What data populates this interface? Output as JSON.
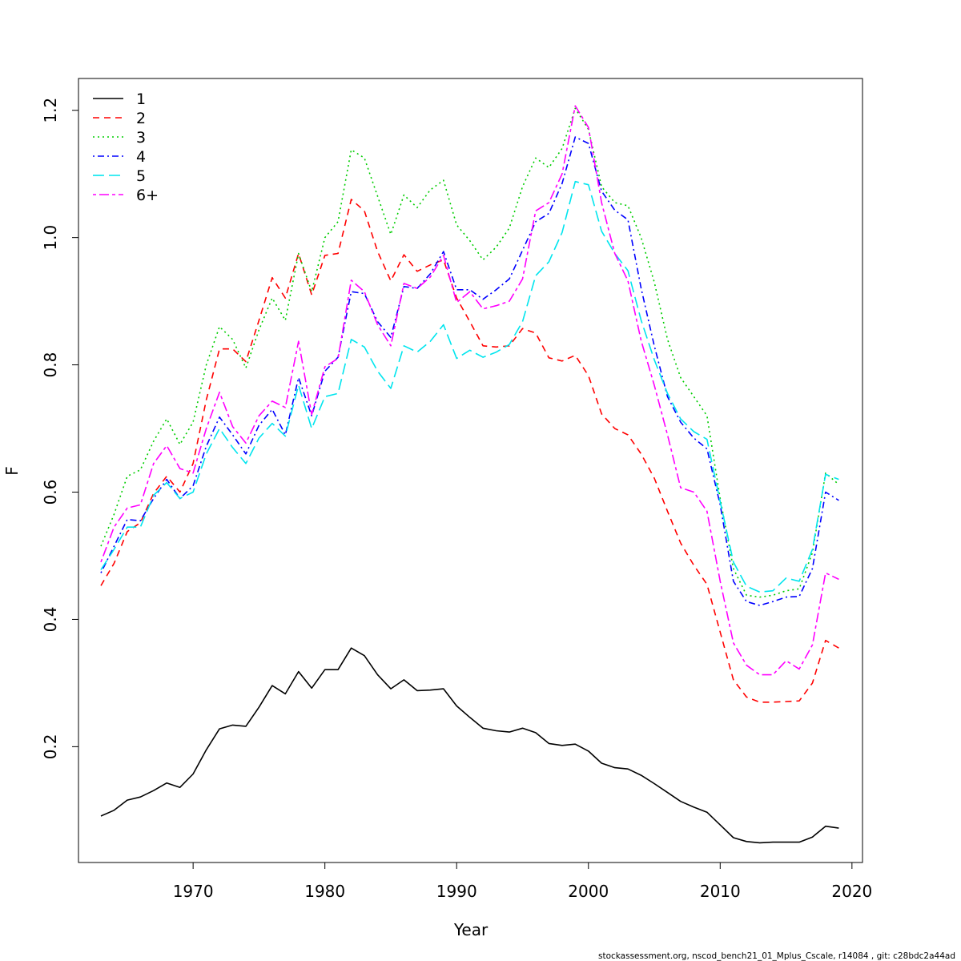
{
  "chart_data": {
    "type": "line",
    "xlabel": "Year",
    "ylabel": "F",
    "xlim": [
      1961.3,
      2020.8
    ],
    "ylim": [
      0.018,
      1.25
    ],
    "xticks": [
      1970,
      1980,
      1990,
      2000,
      2010,
      2020
    ],
    "yticks": [
      0.2,
      0.4,
      0.6,
      0.8,
      1.0,
      1.2
    ],
    "ytick_labels": [
      "0.2",
      "0.4",
      "0.6",
      "0.8",
      "1.0",
      "1.2"
    ],
    "grid": false,
    "legend_position": "top-left",
    "footer": "stockassessment.org, nscod_bench21_01_Mplus_Cscale, r14084 , git: c28bdc2a44ad",
    "x": [
      1963,
      1964,
      1965,
      1966,
      1967,
      1968,
      1969,
      1970,
      1971,
      1972,
      1973,
      1974,
      1975,
      1976,
      1977,
      1978,
      1979,
      1980,
      1981,
      1982,
      1983,
      1984,
      1985,
      1986,
      1987,
      1988,
      1989,
      1990,
      1991,
      1992,
      1993,
      1994,
      1995,
      1996,
      1997,
      1998,
      1999,
      2000,
      2001,
      2002,
      2003,
      2004,
      2005,
      2006,
      2007,
      2008,
      2009,
      2010,
      2011,
      2012,
      2013,
      2014,
      2015,
      2016,
      2017,
      2018,
      2019
    ],
    "series": [
      {
        "name": "1",
        "color": "#000000",
        "dash": "solid",
        "values": [
          0.091,
          0.1,
          0.116,
          0.121,
          0.131,
          0.143,
          0.136,
          0.157,
          0.195,
          0.228,
          0.234,
          0.232,
          0.262,
          0.296,
          0.283,
          0.318,
          0.292,
          0.321,
          0.321,
          0.355,
          0.343,
          0.313,
          0.291,
          0.305,
          0.288,
          0.289,
          0.291,
          0.264,
          0.246,
          0.229,
          0.225,
          0.223,
          0.229,
          0.222,
          0.205,
          0.202,
          0.204,
          0.193,
          0.174,
          0.167,
          0.165,
          0.155,
          0.142,
          0.128,
          0.114,
          0.105,
          0.097,
          0.077,
          0.057,
          0.051,
          0.049,
          0.05,
          0.05,
          0.05,
          0.058,
          0.075,
          0.072
        ]
      },
      {
        "name": "2",
        "color": "#ff0000",
        "dash": "dashed",
        "values": [
          0.453,
          0.488,
          0.538,
          0.552,
          0.598,
          0.625,
          0.6,
          0.645,
          0.745,
          0.825,
          0.825,
          0.805,
          0.87,
          0.937,
          0.905,
          0.975,
          0.91,
          0.972,
          0.975,
          1.06,
          1.042,
          0.978,
          0.932,
          0.973,
          0.947,
          0.957,
          0.965,
          0.905,
          0.868,
          0.83,
          0.828,
          0.83,
          0.857,
          0.85,
          0.811,
          0.806,
          0.815,
          0.783,
          0.723,
          0.7,
          0.69,
          0.66,
          0.622,
          0.57,
          0.52,
          0.485,
          0.455,
          0.38,
          0.305,
          0.278,
          0.27,
          0.27,
          0.271,
          0.272,
          0.3,
          0.367,
          0.355
        ]
      },
      {
        "name": "3",
        "color": "#00cd00",
        "dash": "dotted",
        "values": [
          0.515,
          0.565,
          0.625,
          0.635,
          0.68,
          0.715,
          0.675,
          0.71,
          0.8,
          0.86,
          0.84,
          0.795,
          0.855,
          0.905,
          0.87,
          0.975,
          0.915,
          1.0,
          1.025,
          1.138,
          1.125,
          1.065,
          1.005,
          1.067,
          1.047,
          1.075,
          1.09,
          1.02,
          0.995,
          0.965,
          0.985,
          1.015,
          1.08,
          1.125,
          1.11,
          1.14,
          1.203,
          1.17,
          1.08,
          1.055,
          1.05,
          1.0,
          0.93,
          0.84,
          0.78,
          0.75,
          0.72,
          0.59,
          0.48,
          0.438,
          0.435,
          0.438,
          0.445,
          0.448,
          0.505,
          0.63,
          0.612
        ]
      },
      {
        "name": "4",
        "color": "#0000ff",
        "dash": "dotdash",
        "values": [
          0.473,
          0.515,
          0.557,
          0.555,
          0.59,
          0.62,
          0.59,
          0.61,
          0.672,
          0.718,
          0.69,
          0.66,
          0.705,
          0.73,
          0.69,
          0.78,
          0.72,
          0.79,
          0.812,
          0.915,
          0.912,
          0.868,
          0.843,
          0.923,
          0.92,
          0.943,
          0.978,
          0.918,
          0.918,
          0.903,
          0.918,
          0.935,
          0.98,
          1.025,
          1.038,
          1.085,
          1.158,
          1.148,
          1.073,
          1.043,
          1.028,
          0.92,
          0.83,
          0.75,
          0.71,
          0.685,
          0.668,
          0.58,
          0.46,
          0.428,
          0.422,
          0.428,
          0.435,
          0.436,
          0.48,
          0.6,
          0.587
        ]
      },
      {
        "name": "5",
        "color": "#00e5ee",
        "dash": "longdash",
        "values": [
          0.478,
          0.51,
          0.545,
          0.545,
          0.595,
          0.615,
          0.59,
          0.6,
          0.66,
          0.7,
          0.67,
          0.645,
          0.685,
          0.708,
          0.688,
          0.768,
          0.7,
          0.75,
          0.755,
          0.84,
          0.828,
          0.79,
          0.763,
          0.83,
          0.82,
          0.837,
          0.863,
          0.81,
          0.823,
          0.812,
          0.82,
          0.832,
          0.868,
          0.94,
          0.962,
          1.008,
          1.088,
          1.083,
          1.01,
          0.975,
          0.948,
          0.87,
          0.808,
          0.755,
          0.715,
          0.695,
          0.683,
          0.585,
          0.49,
          0.452,
          0.443,
          0.445,
          0.465,
          0.46,
          0.51,
          0.628,
          0.62
        ]
      },
      {
        "name": "6+",
        "color": "#ff00ff",
        "dash": "twodash",
        "values": [
          0.49,
          0.545,
          0.575,
          0.58,
          0.645,
          0.673,
          0.637,
          0.63,
          0.7,
          0.757,
          0.703,
          0.677,
          0.72,
          0.743,
          0.733,
          0.837,
          0.722,
          0.797,
          0.81,
          0.933,
          0.915,
          0.863,
          0.83,
          0.928,
          0.92,
          0.938,
          0.972,
          0.898,
          0.915,
          0.888,
          0.893,
          0.9,
          0.935,
          1.042,
          1.055,
          1.1,
          1.207,
          1.173,
          1.055,
          0.975,
          0.932,
          0.838,
          0.768,
          0.69,
          0.607,
          0.6,
          0.57,
          0.46,
          0.363,
          0.328,
          0.313,
          0.313,
          0.335,
          0.322,
          0.36,
          0.473,
          0.463
        ]
      }
    ]
  }
}
